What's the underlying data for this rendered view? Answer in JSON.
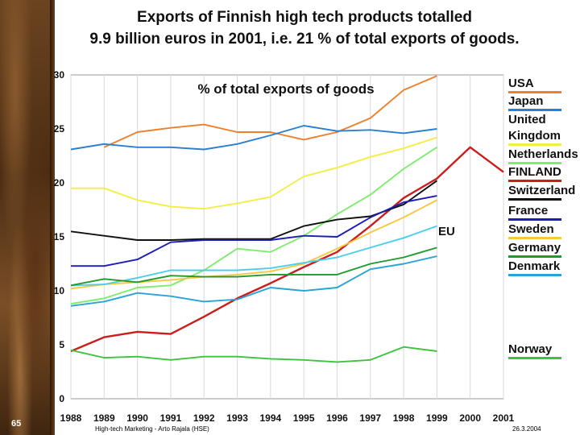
{
  "slide": {
    "title_line1": "Exports of Finnish high tech products totalled",
    "title_line2": "9.9 billion euros in 2001, i.e. 21 % of total exports of goods.",
    "number": "65",
    "footer_left": "High-tech Marketing - Arto Rajala (HSE)",
    "footer_right": "26.3.2004"
  },
  "chart_data": {
    "type": "line",
    "title": "% of total exports of goods",
    "xlabel": "",
    "ylabel": "",
    "x": [
      1988,
      1989,
      1990,
      1991,
      1992,
      1993,
      1994,
      1995,
      1996,
      1997,
      1998,
      1999,
      2000,
      2001
    ],
    "ylim": [
      0,
      30
    ],
    "yticks": [
      0,
      5,
      10,
      15,
      20,
      25,
      30
    ],
    "annotation": "EU",
    "series": [
      {
        "name": "USA",
        "legend": [
          "USA"
        ],
        "color": "#ee7f2d",
        "values": [
          null,
          23.3,
          24.7,
          25.1,
          25.4,
          24.7,
          24.7,
          24.0,
          24.7,
          26.0,
          28.6,
          29.9,
          null,
          null
        ]
      },
      {
        "name": "Japan",
        "legend": [
          "Japan"
        ],
        "color": "#2a7fd4",
        "values": [
          23.1,
          23.6,
          23.3,
          23.3,
          23.1,
          23.6,
          24.4,
          25.3,
          24.8,
          24.9,
          24.6,
          25.0,
          null,
          null
        ]
      },
      {
        "name": "United Kingdom",
        "legend": [
          "United",
          "Kingdom"
        ],
        "color": "#f2ee44",
        "values": [
          19.5,
          19.5,
          18.4,
          17.8,
          17.6,
          18.1,
          18.7,
          20.6,
          21.4,
          22.4,
          23.2,
          24.2,
          null,
          null
        ]
      },
      {
        "name": "Netherlands",
        "legend": [
          "Netherlands"
        ],
        "color": "#7ded6e",
        "values": [
          8.8,
          9.3,
          10.3,
          10.5,
          11.9,
          13.9,
          13.6,
          15.1,
          17.1,
          18.9,
          21.3,
          23.3,
          null,
          null
        ]
      },
      {
        "name": "FINLAND",
        "legend": [
          "FINLAND"
        ],
        "color": "#cc1d1d",
        "values": [
          4.4,
          5.7,
          6.2,
          6.0,
          7.6,
          9.3,
          10.7,
          12.2,
          13.6,
          16.0,
          18.6,
          20.4,
          23.3,
          21.0
        ]
      },
      {
        "name": "Switzerland",
        "legend": [
          "Switzerland"
        ],
        "color": "#111111",
        "values": [
          15.5,
          15.1,
          14.7,
          14.7,
          14.8,
          14.8,
          14.8,
          16.0,
          16.6,
          16.9,
          18.0,
          20.2,
          null,
          null
        ]
      },
      {
        "name": "France",
        "legend": [
          "France"
        ],
        "color": "#1d1db8",
        "values": [
          12.3,
          12.3,
          12.9,
          14.5,
          14.7,
          14.7,
          14.7,
          15.1,
          15.0,
          16.8,
          18.2,
          18.8,
          null,
          null
        ]
      },
      {
        "name": "Sweden",
        "legend": [
          "Sweden"
        ],
        "color": "#f5c842",
        "values": [
          10.2,
          10.6,
          10.8,
          11.0,
          11.3,
          11.5,
          11.8,
          12.5,
          13.9,
          15.4,
          16.8,
          18.4,
          null,
          null
        ]
      },
      {
        "name": "EU",
        "legend": [],
        "color": "#4ccdee",
        "values": [
          10.5,
          10.6,
          11.2,
          11.9,
          11.9,
          11.9,
          12.1,
          12.6,
          13.1,
          14.0,
          14.9,
          16.0,
          null,
          null
        ]
      },
      {
        "name": "Germany",
        "legend": [
          "Germany"
        ],
        "color": "#1f9a2c",
        "values": [
          10.5,
          11.1,
          10.8,
          11.4,
          11.3,
          11.3,
          11.5,
          11.5,
          11.5,
          12.5,
          13.1,
          14.0,
          null,
          null
        ]
      },
      {
        "name": "Denmark",
        "legend": [
          "Denmark"
        ],
        "color": "#2aa4d8",
        "values": [
          8.6,
          9.0,
          9.8,
          9.5,
          9.0,
          9.2,
          10.3,
          10.0,
          10.3,
          12.0,
          12.5,
          13.2,
          null,
          null
        ]
      },
      {
        "name": "Norway",
        "legend": [
          "Norway"
        ],
        "color": "#3cc43c",
        "values": [
          4.5,
          3.8,
          3.9,
          3.6,
          3.9,
          3.9,
          3.7,
          3.6,
          3.4,
          3.6,
          4.8,
          4.4,
          null,
          null
        ]
      }
    ]
  }
}
